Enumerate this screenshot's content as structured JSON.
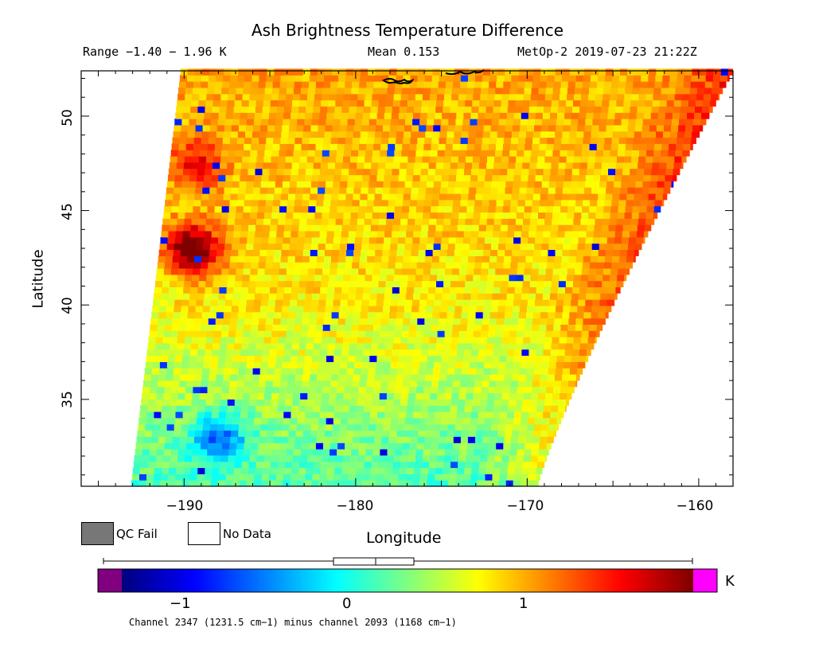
{
  "title": "Ash Brightness Temperature Difference",
  "header": {
    "range": "Range −1.40 − 1.96 K",
    "mean": "Mean 0.153",
    "satellite": "MetOp-2 2019-07-23 21:22Z"
  },
  "axes": {
    "ylabel": "Latitude",
    "xlabel": "Longitude",
    "yticks": [
      "50",
      "45",
      "40",
      "35"
    ],
    "xticks": [
      "−190",
      "−180",
      "−170",
      "−160"
    ]
  },
  "legend": {
    "qc_fail": "QC Fail",
    "no_data": "No Data"
  },
  "colorbar": {
    "ticks": [
      "−1",
      "0",
      "1"
    ],
    "unit": "K",
    "caption": "Channel 2347 (1231.5 cm−1) minus channel 2093 (1168 cm−1)",
    "colors": {
      "underflow": "#800080",
      "overflow": "#ff00ff",
      "qc_fail": "#777777"
    }
  },
  "chart_data": {
    "type": "heatmap",
    "title": "Ash Brightness Temperature Difference",
    "xlabel": "Longitude",
    "ylabel": "Latitude",
    "xlim": [
      -196,
      -158
    ],
    "ylim": [
      30.4,
      52.4
    ],
    "value_range": [
      -1.4,
      1.96
    ],
    "value_mean": 0.153,
    "colorbar_range": [
      -1.5,
      2.0
    ],
    "units": "K",
    "swath_edges": {
      "left_lon_at_top": -190.2,
      "left_lon_at_bottom": -193.1,
      "right_lon_at_top": -158.0,
      "right_lon_at_bottom": -169.4
    },
    "features": [
      {
        "name": "hotspot",
        "lon": -189.5,
        "lat": 43.0,
        "value": 1.9
      },
      {
        "name": "warm-patch",
        "lon": -189.2,
        "lat": 47.5,
        "value": 1.2
      },
      {
        "name": "cool-southwest",
        "lon": -188.0,
        "lat": 33.0,
        "value": -0.5
      }
    ]
  }
}
